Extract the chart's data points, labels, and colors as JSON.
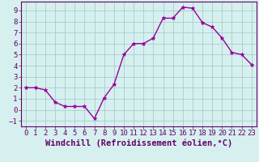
{
  "x": [
    0,
    1,
    2,
    3,
    4,
    5,
    6,
    7,
    8,
    9,
    10,
    11,
    12,
    13,
    14,
    15,
    16,
    17,
    18,
    19,
    20,
    21,
    22,
    23
  ],
  "y": [
    2,
    2,
    1.8,
    0.7,
    0.3,
    0.3,
    0.3,
    -0.8,
    1.1,
    2.3,
    5.0,
    6.0,
    6.0,
    6.5,
    8.3,
    8.3,
    9.3,
    9.2,
    7.9,
    7.5,
    6.5,
    5.2,
    5.0,
    4.1
  ],
  "line_color": "#990099",
  "marker": "*",
  "marker_size": 3.5,
  "bg_color": "#d6f0f0",
  "grid_color": "#aacccc",
  "xlabel": "Windchill (Refroidissement éolien,°C)",
  "ylim": [
    -1.5,
    9.8
  ],
  "xlim": [
    -0.5,
    23.5
  ],
  "yticks": [
    -1,
    0,
    1,
    2,
    3,
    4,
    5,
    6,
    7,
    8,
    9
  ],
  "xticks": [
    0,
    1,
    2,
    3,
    4,
    5,
    6,
    7,
    8,
    9,
    10,
    11,
    12,
    13,
    14,
    15,
    16,
    17,
    18,
    19,
    20,
    21,
    22,
    23
  ],
  "tick_color": "#660066",
  "label_color": "#660066",
  "tick_fontsize": 6.5,
  "xlabel_fontsize": 7.5
}
